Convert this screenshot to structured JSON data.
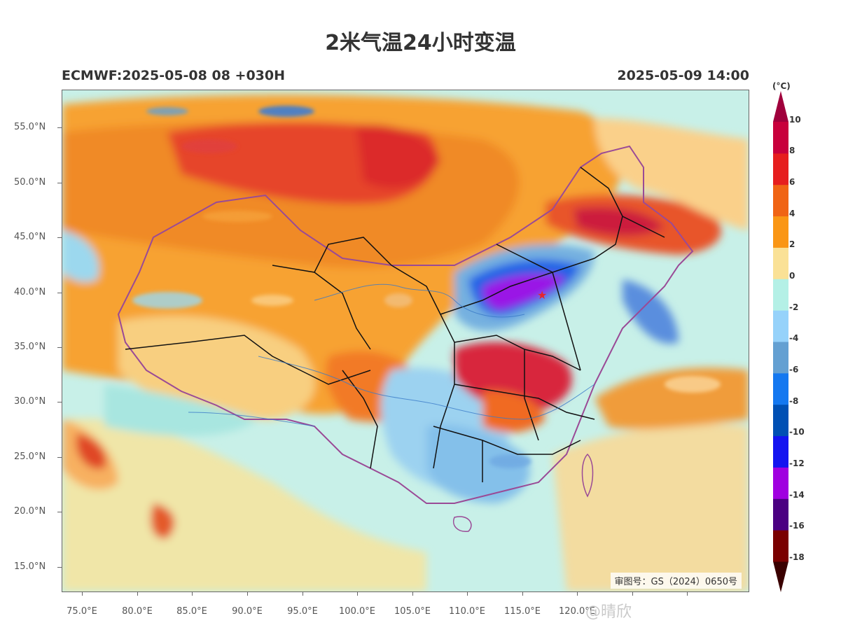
{
  "title": "2米气温24小时变温",
  "subtitle_left": "ECMWF:2025-05-08 08 +030H",
  "subtitle_right": "2025-05-09 14:00",
  "lat_labels": [
    "55.0°N",
    "50.0°N",
    "45.0°N",
    "40.0°N",
    "35.0°N",
    "30.0°N",
    "25.0°N",
    "20.0°N",
    "15.0°N"
  ],
  "lon_labels": [
    "75.0°E",
    "80.0°E",
    "85.0°E",
    "90.0°E",
    "95.0°E",
    "100.0°E",
    "105.0°E",
    "110.0°E",
    "115.0°E",
    "120.0°E"
  ],
  "approval_number": "审图号：GS（2024）0650号",
  "colorbar": {
    "unit": "(°C)",
    "labels": [
      "10",
      "8",
      "6",
      "4",
      "2",
      "0",
      "-2",
      "-4",
      "-6",
      "-8",
      "-10",
      "-12",
      "-14",
      "-16",
      "-18"
    ],
    "colors": [
      "#3a0000",
      "#7a0000",
      "#4b0082",
      "#a000e0",
      "#1414f0",
      "#0050b4",
      "#1478f0",
      "#64a0d2",
      "#96d2fa",
      "#b4f0e6",
      "#fae196",
      "#fa9614",
      "#f06414",
      "#e61e1e",
      "#c8003c",
      "#a0003c"
    ]
  },
  "watermark": "@晴欣"
}
